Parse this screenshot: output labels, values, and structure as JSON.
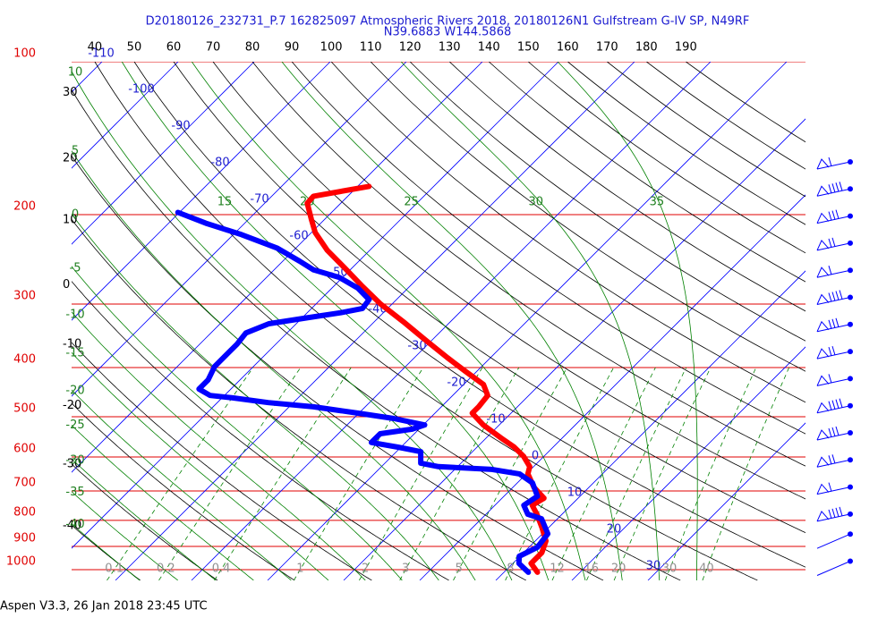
{
  "chart_data": {
    "type": "skew-t",
    "title": "D20180126_232731_P.7 162825097 Atmospheric Rivers 2018, 20180126N1 Gulfstream G-IV SP, N49RF",
    "subtitle": "N39.6883 W144.5868",
    "footer": "Aspen V3.3, 26 Jan 2018  23:45 UTC",
    "log_y": true,
    "ylim": [
      1050,
      100
    ],
    "yticks": [
      100,
      200,
      300,
      400,
      500,
      600,
      700,
      800,
      900,
      1000
    ],
    "isotherms": [
      -110,
      -100,
      -90,
      -80,
      -70,
      -60,
      -50,
      -40,
      -30,
      -20,
      -10,
      0,
      10,
      20,
      30
    ],
    "dry_adiabats": [
      -40,
      -30,
      -20,
      -10,
      0,
      10,
      20,
      30,
      40,
      50,
      60,
      70,
      80,
      90,
      100,
      110,
      120,
      130,
      140,
      150,
      160,
      170,
      180,
      190
    ],
    "moist_adiabats": [
      -40,
      -35,
      -30,
      -25,
      -20,
      -15,
      -10,
      -5,
      0,
      5,
      10,
      15,
      20,
      25,
      30,
      35
    ],
    "mixing_ratios": [
      0.1,
      0.2,
      0.4,
      1,
      2,
      3,
      5,
      8,
      12,
      16,
      20,
      30,
      40
    ],
    "series": [
      {
        "color": "#ff0000",
        "pressure": [
          176,
          184,
          190,
          204,
          217,
          235,
          255,
          277,
          300,
          325,
          353,
          383,
          407,
          432,
          454,
          478,
          492,
          519,
          551,
          574,
          598,
          627,
          648,
          689,
          723,
          747,
          778,
          826,
          878,
          926,
          972,
          1012
        ],
        "values": [
          -58.5,
          -64.5,
          -64.4,
          -61.8,
          -59.5,
          -55.6,
          -50.9,
          -46.2,
          -41.5,
          -36.2,
          -30.9,
          -25.6,
          -21.5,
          -17.4,
          -15.4,
          -15.1,
          -15.1,
          -12.1,
          -8.0,
          -5.1,
          -2.7,
          -0.5,
          0.2,
          2.8,
          5.5,
          4.9,
          6.7,
          9.1,
          11.4,
          12.4,
          12.4,
          14.4
        ]
      },
      {
        "color": "#0000ff",
        "pressure": [
          198,
          208,
          219,
          233,
          247,
          257,
          266,
          279,
          294,
          306,
          312,
          319,
          328,
          342,
          360,
          375,
          398,
          423,
          441,
          454,
          459,
          469,
          478,
          492,
          504,
          519,
          529,
          540,
          562,
          574,
          586,
          617,
          627,
          635,
          648,
          675,
          717,
          747,
          778,
          794,
          850,
          904,
          941,
          972,
          1012
        ],
        "values": [
          -80.2,
          -75.1,
          -68.9,
          -62.4,
          -57.8,
          -54.8,
          -50.4,
          -46.6,
          -43.6,
          -43.3,
          -45.6,
          -49.2,
          -53.6,
          -55.4,
          -55.1,
          -55.1,
          -55.1,
          -54.2,
          -54.2,
          -51.9,
          -48.6,
          -43.3,
          -36.8,
          -30.1,
          -24.7,
          -19.8,
          -20.9,
          -24.5,
          -24.5,
          -20.4,
          -16.8,
          -15.3,
          -12.5,
          -5.1,
          -0.9,
          2.0,
          4.4,
          3.8,
          5.5,
          7.9,
          10.7,
          11.1,
          9.9,
          10.8,
          13.2
        ]
      }
    ]
  }
}
